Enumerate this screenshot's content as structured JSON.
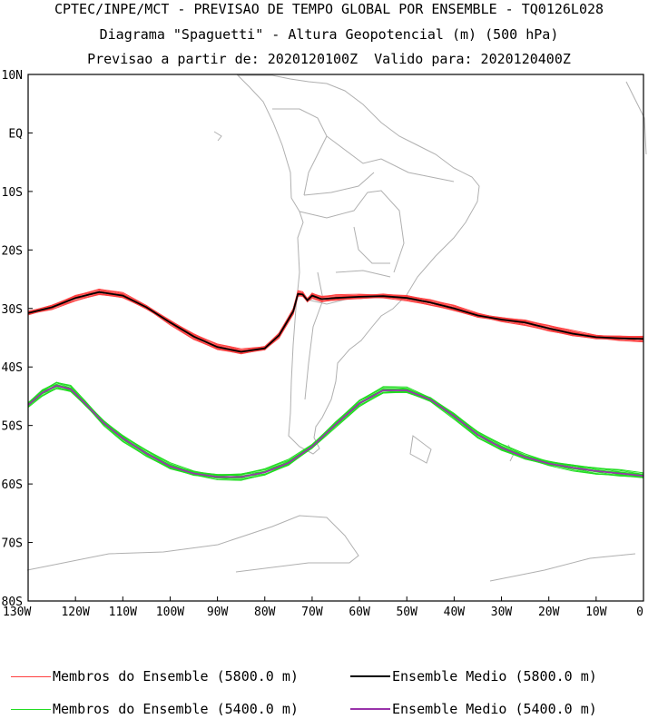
{
  "header": {
    "line1": "CPTEC/INPE/MCT - PREVISAO DE TEMPO GLOBAL POR ENSEMBLE - TQ0126L028",
    "line2": "Diagrama \"Spaguetti\" - Altura Geopotencial (m) (500 hPa)",
    "line3": "Previsao a partir de: 2020120100Z  Valido para: 2020120400Z"
  },
  "axes": {
    "lat_labels": [
      "10N",
      "EQ",
      "10S",
      "20S",
      "30S",
      "40S",
      "50S",
      "60S",
      "70S",
      "80S"
    ],
    "lat_values": [
      10,
      0,
      -10,
      -20,
      -30,
      -40,
      -50,
      -60,
      -70,
      -80
    ],
    "lon_labels": [
      "130W",
      "120W",
      "110W",
      "100W",
      "90W",
      "80W",
      "70W",
      "60W",
      "50W",
      "40W",
      "30W",
      "20W",
      "10W",
      "0"
    ],
    "lon_values": [
      -130,
      -120,
      -110,
      -100,
      -90,
      -80,
      -70,
      -60,
      -50,
      -40,
      -30,
      -20,
      -10,
      0
    ],
    "lon_range": [
      -130,
      0
    ],
    "lat_range": [
      -80,
      10
    ]
  },
  "colors": {
    "member_5800": "#ff4040",
    "mean_5800": "#000000",
    "member_5400": "#22dd22",
    "mean_5400": "#9933aa",
    "coast": "#b0b0b0"
  },
  "legend": {
    "members_5800": "Membros do Ensemble (5800.0 m)",
    "mean_5800": "Ensemble Medio (5800.0 m)",
    "members_5400": "Membros do Ensemble (5400.0 m)",
    "mean_5400": "Ensemble Medio (5400.0 m)"
  },
  "chart_data": {
    "type": "line",
    "title": "CPTEC/INPE/MCT - PREVISAO DE TEMPO GLOBAL POR ENSEMBLE - TQ0126L028",
    "xlim": [
      -130,
      0
    ],
    "ylim": [
      -80,
      10
    ],
    "series": [
      {
        "name": "Ensemble Medio (5800.0 m)",
        "x": [
          -130,
          -125,
          -120,
          -115,
          -110,
          -105,
          -100,
          -95,
          -90,
          -85,
          -80,
          -77,
          -74,
          -73,
          -72,
          -71,
          -70,
          -68,
          -65,
          -60,
          -55,
          -50,
          -45,
          -40,
          -35,
          -30,
          -25,
          -20,
          -15,
          -10,
          -5,
          0
        ],
        "y": [
          -30.8,
          -29.8,
          -28.2,
          -27.2,
          -27.8,
          -29.8,
          -32.4,
          -34.8,
          -36.6,
          -37.4,
          -36.8,
          -34.6,
          -30.5,
          -27.5,
          -27.6,
          -28.6,
          -27.8,
          -28.4,
          -28.2,
          -28.0,
          -27.9,
          -28.2,
          -29.0,
          -30.0,
          -31.2,
          -31.9,
          -32.4,
          -33.4,
          -34.3,
          -34.9,
          -35.1,
          -35.2
        ]
      },
      {
        "name": "Ensemble Medio (5400.0 m)",
        "x": [
          -130,
          -127,
          -124,
          -121,
          -118,
          -114,
          -110,
          -105,
          -100,
          -95,
          -90,
          -85,
          -80,
          -75,
          -70,
          -65,
          -60,
          -55,
          -50,
          -45,
          -40,
          -35,
          -30,
          -25,
          -20,
          -15,
          -10,
          -5,
          0
        ],
        "y": [
          -46.5,
          -44.4,
          -43.2,
          -43.8,
          -46.2,
          -49.6,
          -52.2,
          -54.8,
          -57.0,
          -58.2,
          -58.8,
          -58.8,
          -58.0,
          -56.4,
          -53.6,
          -49.8,
          -46.2,
          -44.0,
          -44.0,
          -45.6,
          -48.4,
          -51.6,
          -53.8,
          -55.4,
          -56.5,
          -57.2,
          -57.8,
          -58.2,
          -58.6
        ]
      }
    ]
  }
}
